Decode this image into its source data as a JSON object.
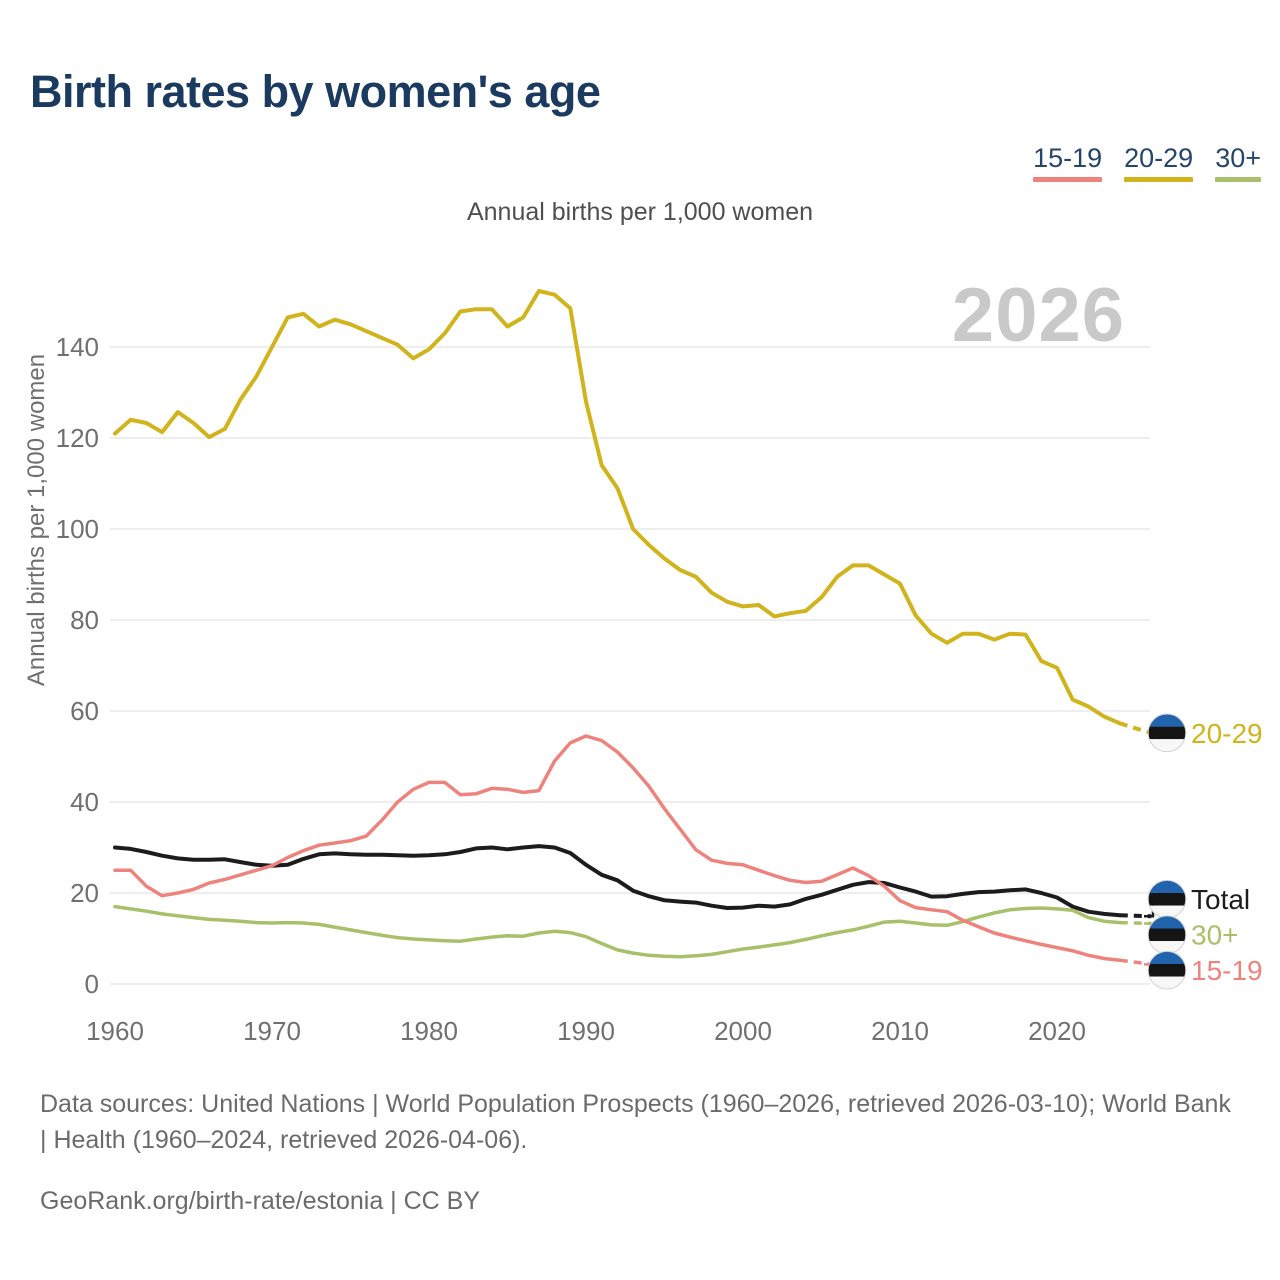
{
  "page": {
    "title": "Birth rates by women's age",
    "subtitle": "Annual births per 1,000 women",
    "watermark_year": "2026"
  },
  "legend": {
    "items": [
      {
        "label": "15-19",
        "color": "#ee837e"
      },
      {
        "label": "20-29",
        "color": "#d1b31c"
      },
      {
        "label": "30+",
        "color": "#a8c06a"
      }
    ]
  },
  "footer": {
    "sources": "Data sources: United Nations | World Population Prospects (1960–2026, retrieved 2026-03-10); World Bank | Health (1960–2024, retrieved 2026-04-06).",
    "attribution": "GeoRank.org/birth-rate/estonia | CC BY"
  },
  "chart_data": {
    "type": "line",
    "title": "Birth rates by women's age",
    "subtitle": "Annual births per 1,000 women",
    "xlabel": "",
    "ylabel": "Annual births per 1,000 women",
    "x_range": [
      1960,
      2026
    ],
    "ylim": [
      0,
      160
    ],
    "grid": "horizontal",
    "legend_position": "top-right",
    "dashed_from_year": 2024,
    "x_ticks": [
      1960,
      1970,
      1980,
      1990,
      2000,
      2010,
      2020
    ],
    "y_ticks": [
      0,
      20,
      40,
      60,
      80,
      100,
      120,
      140
    ],
    "x": [
      1960,
      1961,
      1962,
      1963,
      1964,
      1965,
      1966,
      1967,
      1968,
      1969,
      1970,
      1971,
      1972,
      1973,
      1974,
      1975,
      1976,
      1977,
      1978,
      1979,
      1980,
      1981,
      1982,
      1983,
      1984,
      1985,
      1986,
      1987,
      1988,
      1989,
      1990,
      1991,
      1992,
      1993,
      1994,
      1995,
      1996,
      1997,
      1998,
      1999,
      2000,
      2001,
      2002,
      2003,
      2004,
      2005,
      2006,
      2007,
      2008,
      2009,
      2010,
      2011,
      2012,
      2013,
      2014,
      2015,
      2016,
      2017,
      2018,
      2019,
      2020,
      2021,
      2022,
      2023,
      2024,
      2025,
      2026
    ],
    "series": [
      {
        "name": "Total",
        "color": "#1c1c1c",
        "values": [
          30,
          29.7,
          29,
          28.2,
          27.6,
          27.3,
          27.3,
          27.4,
          26.8,
          26.2,
          26,
          26.2,
          27.5,
          28.5,
          28.7,
          28.5,
          28.4,
          28.4,
          28.3,
          28.2,
          28.3,
          28.5,
          29,
          29.8,
          30,
          29.6,
          30,
          30.3,
          30,
          28.8,
          26.2,
          24,
          22.8,
          20.5,
          19.3,
          18.4,
          18.1,
          17.9,
          17.2,
          16.7,
          16.8,
          17.2,
          17,
          17.5,
          18.7,
          19.6,
          20.7,
          21.8,
          22.4,
          22.2,
          21.2,
          20.3,
          19.2,
          19.3,
          19.8,
          20.2,
          20.3,
          20.6,
          20.8,
          20,
          19,
          17,
          15.9,
          15.4,
          15.1,
          15,
          14.9
        ]
      },
      {
        "name": "30+",
        "color": "#a8c06a",
        "values": [
          17,
          16.5,
          16,
          15.4,
          15,
          14.6,
          14.2,
          14,
          13.8,
          13.5,
          13.4,
          13.5,
          13.4,
          13.1,
          12.5,
          11.9,
          11.3,
          10.7,
          10.2,
          9.9,
          9.7,
          9.5,
          9.4,
          9.9,
          10.3,
          10.6,
          10.5,
          11.2,
          11.6,
          11.3,
          10.4,
          8.9,
          7.5,
          6.8,
          6.3,
          6.1,
          6,
          6.2,
          6.5,
          7.1,
          7.7,
          8.1,
          8.6,
          9.1,
          9.8,
          10.6,
          11.3,
          11.9,
          12.7,
          13.6,
          13.8,
          13.4,
          13,
          12.9,
          13.7,
          14.7,
          15.6,
          16.3,
          16.6,
          16.7,
          16.5,
          16.2,
          14.6,
          13.8,
          13.5,
          13.4,
          13.3
        ]
      },
      {
        "name": "15-19",
        "color": "#ee837e",
        "values": [
          25,
          25,
          21.5,
          19.4,
          20,
          20.8,
          22.2,
          23,
          24,
          25,
          26,
          27.8,
          29.3,
          30.5,
          31,
          31.5,
          32.5,
          36,
          40,
          42.8,
          44.3,
          44.3,
          41.6,
          41.8,
          43,
          42.8,
          42.1,
          42.5,
          49,
          53,
          54.5,
          53.5,
          51,
          47.5,
          43.5,
          38.5,
          34,
          29.5,
          27.2,
          26.5,
          26.2,
          25,
          23.8,
          22.8,
          22.3,
          22.6,
          24,
          25.5,
          23.8,
          21.5,
          18.3,
          16.8,
          16.3,
          15.9,
          14,
          12.6,
          11.2,
          10.3,
          9.5,
          8.7,
          8,
          7.3,
          6.3,
          5.6,
          5.2,
          4.8,
          4.3
        ]
      },
      {
        "name": "20-29",
        "color": "#d1b31c",
        "values": [
          121,
          124,
          123.3,
          121.3,
          125.7,
          123.3,
          120.2,
          122,
          128.5,
          133.5,
          140,
          146.5,
          147.3,
          144.5,
          146,
          145,
          143.5,
          142,
          140.5,
          137.5,
          139.5,
          143,
          147.8,
          148.3,
          148.3,
          144.5,
          146.5,
          152.3,
          151.5,
          148.5,
          128,
          114,
          109,
          100,
          96.5,
          93.5,
          91,
          89.5,
          86,
          84,
          83,
          83.3,
          80.8,
          81.5,
          82,
          85,
          89.5,
          92,
          92,
          90,
          88,
          81,
          77,
          75,
          77,
          77,
          75.7,
          77,
          76.8,
          71,
          69.5,
          62.5,
          61,
          58.8,
          57.3,
          56.2,
          55.2
        ]
      }
    ],
    "end_markers": {
      "icon": "estonia-flag-circle",
      "flag_band_colors": [
        "#2163ac",
        "#151515",
        "#f7f7f7"
      ]
    }
  }
}
